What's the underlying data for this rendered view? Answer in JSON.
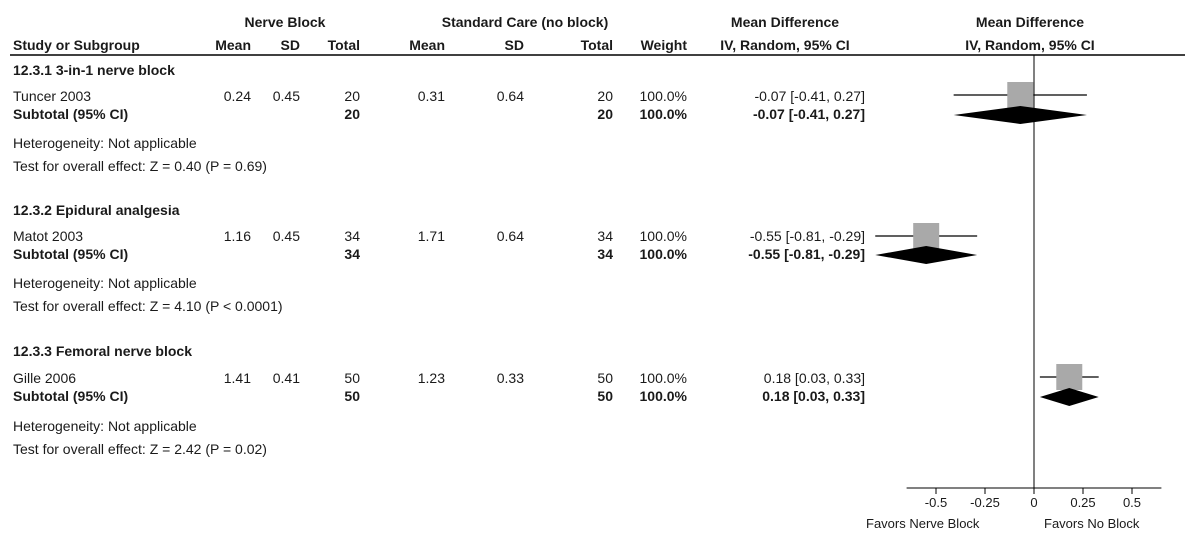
{
  "header": {
    "group1": "Nerve Block",
    "group2": "Standard Care (no block)",
    "md_title": "Mean Difference",
    "md_plot_title": "Mean Difference",
    "col_study": "Study or Subgroup",
    "col_mean1": "Mean",
    "col_sd1": "SD",
    "col_total1": "Total",
    "col_mean2": "Mean",
    "col_sd2": "SD",
    "col_total2": "Total",
    "col_weight": "Weight",
    "col_md": "IV, Random, 95% CI",
    "col_md_plot": "IV, Random, 95% CI"
  },
  "subgroups": [
    {
      "title": "12.3.1 3-in-1 nerve block",
      "study": {
        "name": "Tuncer 2003",
        "mean1": "0.24",
        "sd1": "0.45",
        "total1": "20",
        "mean2": "0.31",
        "sd2": "0.64",
        "total2": "20",
        "weight": "100.0%",
        "ci": "-0.07 [-0.41, 0.27]"
      },
      "subtotal": {
        "label": "Subtotal (95% CI)",
        "total1": "20",
        "total2": "20",
        "weight": "100.0%",
        "ci": "-0.07 [-0.41, 0.27]"
      },
      "heterogeneity": "Heterogeneity: Not applicable",
      "overall": "Test for overall effect: Z = 0.40 (P = 0.69)"
    },
    {
      "title": "12.3.2 Epidural analgesia",
      "study": {
        "name": "Matot 2003",
        "mean1": "1.16",
        "sd1": "0.45",
        "total1": "34",
        "mean2": "1.71",
        "sd2": "0.64",
        "total2": "34",
        "weight": "100.0%",
        "ci": "-0.55 [-0.81, -0.29]"
      },
      "subtotal": {
        "label": "Subtotal (95% CI)",
        "total1": "34",
        "total2": "34",
        "weight": "100.0%",
        "ci": "-0.55 [-0.81, -0.29]"
      },
      "heterogeneity": "Heterogeneity: Not applicable",
      "overall": "Test for overall effect: Z = 4.10 (P < 0.0001)"
    },
    {
      "title": "12.3.3 Femoral nerve block",
      "study": {
        "name": "Gille 2006",
        "mean1": "1.41",
        "sd1": "0.41",
        "total1": "50",
        "mean2": "1.23",
        "sd2": "0.33",
        "total2": "50",
        "weight": "100.0%",
        "ci": "0.18 [0.03, 0.33]"
      },
      "subtotal": {
        "label": "Subtotal (95% CI)",
        "total1": "50",
        "total2": "50",
        "weight": "100.0%",
        "ci": "0.18 [0.03, 0.33]"
      },
      "heterogeneity": "Heterogeneity: Not applicable",
      "overall": "Test for overall effect: Z = 2.42 (P = 0.02)"
    }
  ],
  "axis": {
    "tick_labels": [
      "-0.5",
      "-0.25",
      "0",
      "0.25",
      "0.5"
    ],
    "favors_left": "Favors Nerve Block",
    "favors_right": "Favors No Block"
  },
  "colors": {
    "square": "#a9a9a9",
    "diamond": "#000000",
    "line": "#000000"
  },
  "chart_data": {
    "type": "forest",
    "xlim": [
      -0.65,
      0.65
    ],
    "xticks": [
      -0.5,
      -0.25,
      0,
      0.25,
      0.5
    ],
    "studies": [
      {
        "name": "Tuncer 2003",
        "md": -0.07,
        "lo": -0.41,
        "hi": 0.27,
        "weight": 100.0
      },
      {
        "name": "Matot 2003",
        "md": -0.55,
        "lo": -0.81,
        "hi": -0.29,
        "weight": 100.0
      },
      {
        "name": "Gille 2006",
        "md": 0.18,
        "lo": 0.03,
        "hi": 0.33,
        "weight": 100.0
      }
    ],
    "subtotals": [
      {
        "md": -0.07,
        "lo": -0.41,
        "hi": 0.27
      },
      {
        "md": -0.55,
        "lo": -0.81,
        "hi": -0.29
      },
      {
        "md": 0.18,
        "lo": 0.03,
        "hi": 0.33
      }
    ]
  }
}
